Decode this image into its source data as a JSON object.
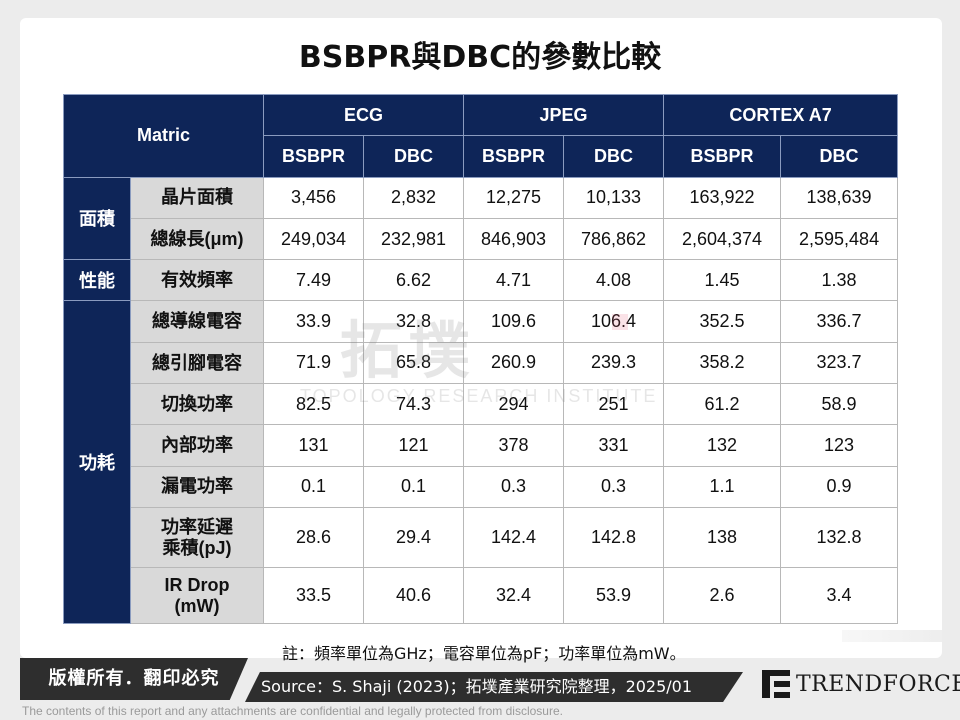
{
  "title": "BSBPR與DBC的參數比較",
  "table": {
    "corner_label": "Matric",
    "benchmarks": [
      "ECG",
      "JPEG",
      "CORTEX A7"
    ],
    "methods": [
      "BSBPR",
      "DBC",
      "BSBPR",
      "DBC",
      "BSBPR",
      "DBC"
    ],
    "groups": [
      {
        "name": "面積",
        "rows": [
          {
            "label": "晶片面積",
            "values": [
              "3,456",
              "2,832",
              "12,275",
              "10,133",
              "163,922",
              "138,639"
            ]
          },
          {
            "label": "總線長(μm)",
            "values": [
              "249,034",
              "232,981",
              "846,903",
              "786,862",
              "2,604,374",
              "2,595,484"
            ]
          }
        ]
      },
      {
        "name": "性能",
        "rows": [
          {
            "label": "有效頻率",
            "values": [
              "7.49",
              "6.62",
              "4.71",
              "4.08",
              "1.45",
              "1.38"
            ]
          }
        ]
      },
      {
        "name": "功耗",
        "rows": [
          {
            "label": "總導線電容",
            "values": [
              "33.9",
              "32.8",
              "109.6",
              "106.4",
              "352.5",
              "336.7"
            ]
          },
          {
            "label": "總引腳電容",
            "values": [
              "71.9",
              "65.8",
              "260.9",
              "239.3",
              "358.2",
              "323.7"
            ]
          },
          {
            "label": "切換功率",
            "values": [
              "82.5",
              "74.3",
              "294",
              "251",
              "61.2",
              "58.9"
            ]
          },
          {
            "label": "內部功率",
            "values": [
              "131",
              "121",
              "378",
              "331",
              "132",
              "123"
            ]
          },
          {
            "label": "漏電功率",
            "values": [
              "0.1",
              "0.1",
              "0.3",
              "0.3",
              "1.1",
              "0.9"
            ]
          },
          {
            "label_line1": "功率延遲",
            "label_line2": "乘積(pJ)",
            "values": [
              "28.6",
              "29.4",
              "142.4",
              "142.8",
              "138",
              "132.8"
            ]
          },
          {
            "label_line1": "IR Drop",
            "label_line2": "(mW)",
            "values": [
              "33.5",
              "40.6",
              "32.4",
              "53.9",
              "2.6",
              "3.4"
            ]
          }
        ]
      }
    ]
  },
  "watermark": {
    "cn": "拓墣",
    "en": "TOPOLOGY RESEARCH INSTITUTE"
  },
  "note": "註：頻率單位為GHz；電容單位為pF；功率單位為mW。",
  "footer": {
    "copyright": "版權所有．翻印必究",
    "source": "Source：S. Shaji (2023)；拓墣產業研究院整理，2025/01",
    "logo_text": "TRENDFORCE",
    "disclaimer": "The contents of this report and any attachments are confidential and legally protected from disclosure."
  },
  "colors": {
    "header_bg": "#0e2558",
    "label_bg": "#d9d9d9",
    "footer_bg": "#2e2e2e"
  }
}
